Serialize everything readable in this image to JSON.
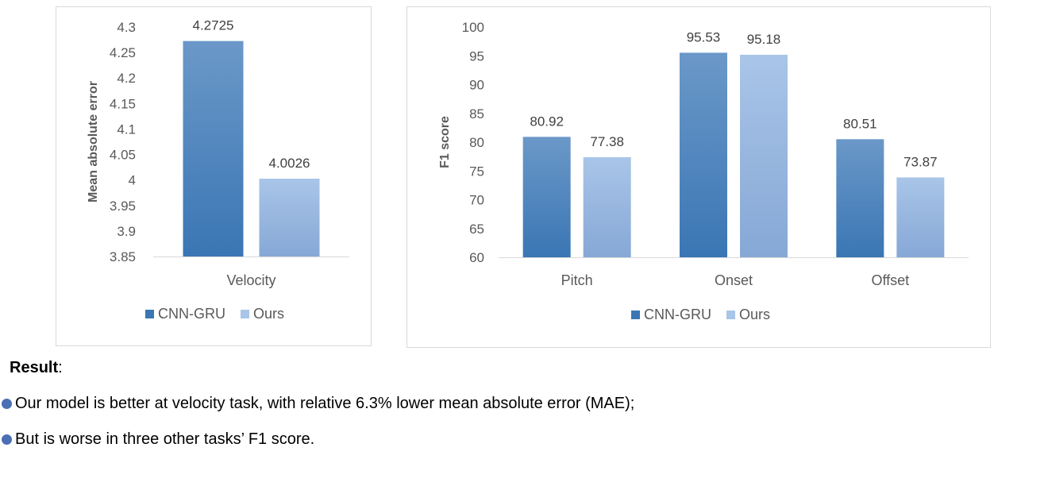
{
  "colors": {
    "series1_top": "#6b98c8",
    "series1_bottom": "#3a76b4",
    "series2_top": "#a9c5e8",
    "series2_bottom": "#86a8d6",
    "axis": "#d9d9d9"
  },
  "chart_data": [
    {
      "type": "bar",
      "categories": [
        "Velocity"
      ],
      "series": [
        {
          "name": "CNN-GRU",
          "values": [
            4.2725
          ]
        },
        {
          "name": "Ours",
          "values": [
            4.0026
          ]
        }
      ],
      "value_labels": [
        [
          "4.2725"
        ],
        [
          "4.0026"
        ]
      ],
      "ylabel": "Mean absolute error",
      "ylim": [
        3.85,
        4.3
      ],
      "yticks": [
        "4.3",
        "4.25",
        "4.2",
        "4.15",
        "4.1",
        "4.05",
        "4",
        "3.95",
        "3.9",
        "3.85"
      ],
      "legend_position": "bottom",
      "grid": false
    },
    {
      "type": "bar",
      "categories": [
        "Pitch",
        "Onset",
        "Offset"
      ],
      "series": [
        {
          "name": "CNN-GRU",
          "values": [
            80.92,
            95.53,
            80.51
          ]
        },
        {
          "name": "Ours",
          "values": [
            77.38,
            95.18,
            73.87
          ]
        }
      ],
      "value_labels": [
        [
          "80.92",
          "95.53",
          "80.51"
        ],
        [
          "77.38",
          "95.18",
          "73.87"
        ]
      ],
      "ylabel": "F1 score",
      "ylim": [
        60,
        100
      ],
      "yticks": [
        "100",
        "95",
        "90",
        "85",
        "80",
        "75",
        "70",
        "65",
        "60"
      ],
      "legend_position": "bottom",
      "grid": false
    }
  ],
  "result": {
    "heading": "Result",
    "colon": ":",
    "bullets": [
      "Our model is better at velocity task, with relative 6.3% lower mean absolute error (MAE);",
      "But is worse in three other tasks’ F1 score."
    ]
  }
}
